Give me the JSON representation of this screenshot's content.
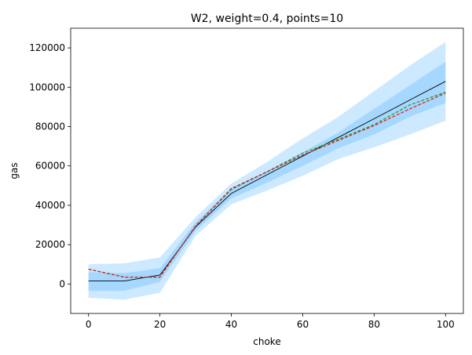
{
  "chart_data": {
    "type": "line",
    "title": "W2, weight=0.4, points=10",
    "xlabel": "choke",
    "ylabel": "gas",
    "xlim": [
      -5,
      105
    ],
    "ylim": [
      -15000,
      130000
    ],
    "xticks": [
      0,
      20,
      40,
      60,
      80,
      100
    ],
    "yticks": [
      0,
      20000,
      40000,
      60000,
      80000,
      100000,
      120000
    ],
    "x": [
      0,
      10,
      20,
      30,
      40,
      50,
      60,
      70,
      80,
      90,
      100
    ],
    "bands": [
      {
        "color": "#cce9ff",
        "upper": [
          10000,
          10500,
          13500,
          34000,
          51000,
          62000,
          74000,
          85000,
          98000,
          111000,
          123000
        ],
        "lower": [
          -7000,
          -8000,
          -4500,
          24500,
          40500,
          47500,
          55000,
          63500,
          69500,
          76000,
          83000
        ]
      },
      {
        "color": "#a6d8ff",
        "upper": [
          6000,
          5500,
          8000,
          31500,
          48500,
          57500,
          67000,
          77000,
          89000,
          101000,
          113000
        ],
        "lower": [
          -3500,
          -3500,
          1000,
          27000,
          43500,
          51500,
          60000,
          69000,
          76000,
          85000,
          92000
        ]
      }
    ],
    "series": [
      {
        "color": "#000000",
        "style": "solid",
        "values": [
          1500,
          1500,
          4500,
          29000,
          46000,
          55500,
          65000,
          74500,
          84000,
          93500,
          103000
        ]
      },
      {
        "color": "#2ca02c",
        "style": "dashed",
        "values": [
          7500,
          3500,
          3500,
          29500,
          48000,
          57000,
          66500,
          73500,
          81000,
          91000,
          97500
        ]
      },
      {
        "color": "#d62728",
        "style": "dashed",
        "values": [
          7500,
          3500,
          3500,
          29500,
          48500,
          57000,
          65500,
          73000,
          80500,
          89000,
          97000
        ]
      }
    ]
  }
}
